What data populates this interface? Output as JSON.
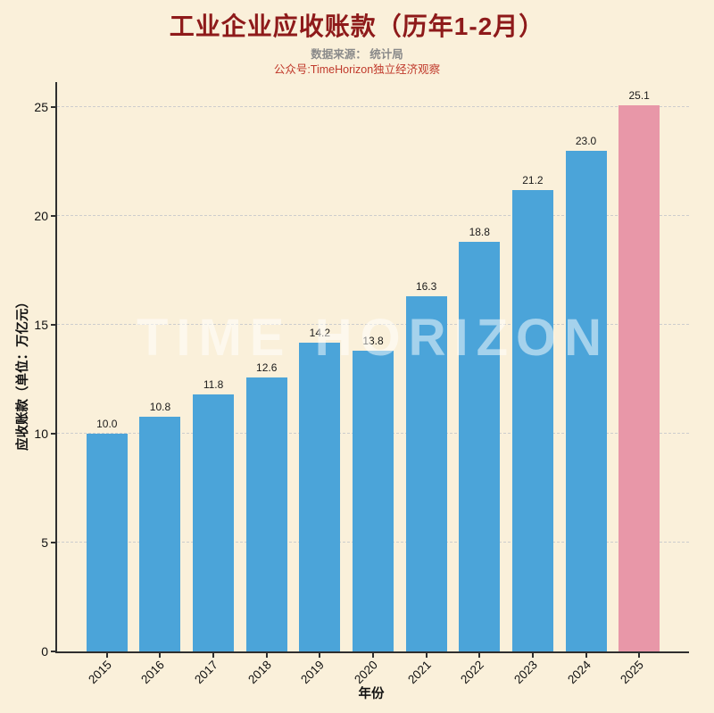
{
  "title": "工业企业应收账款（历年1-2月）",
  "subtitle_source": "数据来源： 统计局",
  "subtitle_brand": "公众号:TimeHorizon独立经济观察",
  "watermark": "TIME HORIZON",
  "chart_data": {
    "type": "bar",
    "title": "工业企业应收账款（历年1-2月）",
    "xlabel": "年份",
    "ylabel": "应收账款（单位：万亿元）",
    "categories": [
      "2015",
      "2016",
      "2017",
      "2018",
      "2019",
      "2020",
      "2021",
      "2022",
      "2023",
      "2024",
      "2025"
    ],
    "values": [
      10.0,
      10.8,
      11.8,
      12.6,
      14.2,
      13.8,
      16.3,
      18.8,
      21.2,
      23.0,
      25.1
    ],
    "value_labels": [
      "10.0",
      "10.8",
      "11.8",
      "12.6",
      "14.2",
      "13.8",
      "16.3",
      "18.8",
      "21.2",
      "23.0",
      "25.1"
    ],
    "yticks": [
      0,
      5,
      10,
      15,
      20,
      25
    ],
    "ylim": [
      0,
      26.15
    ],
    "grid": "dashed horizontal",
    "legend": "none",
    "colors": {
      "bar_default": "#4ba4d9",
      "bar_highlight": "#e897a8",
      "highlight_index": 10,
      "background": "#faf0da",
      "title": "#8e1a1a",
      "subtitle_source": "#8a8a8a",
      "subtitle_brand": "#c0392b",
      "axis": "#2f2f2f",
      "gridline": "#cdcdcd"
    }
  }
}
